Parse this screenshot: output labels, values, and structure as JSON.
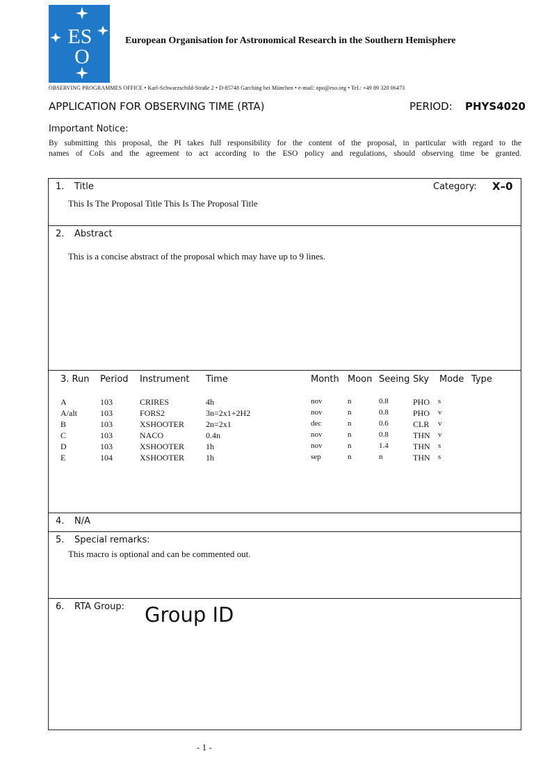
{
  "header": {
    "logo_text": "ESO",
    "organisation": "European Organisation for Astronomical Research in the Southern Hemisphere",
    "address": "OBSERVING PROGRAMMES OFFICE • Karl-Schwarzschild-Straße 2 • D-85748 Garching bei München • e-mail: opo@eso.org • Tel.: +49 89 320 06473",
    "form_title": "APPLICATION FOR OBSERVING TIME (RTA)",
    "period_label": "PERIOD:",
    "period_value": "PHYS4020"
  },
  "notice": {
    "heading": "Important Notice:",
    "line1": "By submitting this proposal, the PI takes full responsibility for the content of the proposal, in particular with regard to the",
    "line2": "names of CoIs and the agreement to act according to the ESO policy and regulations, should observing time be granted."
  },
  "sections": {
    "title": {
      "num": "1.",
      "label": "Title",
      "category_label": "Category:",
      "category_value": "X–0",
      "text": "This Is The Proposal Title This Is The Proposal Title"
    },
    "abstract": {
      "num": "2.",
      "label": "Abstract",
      "text": "This is a concise abstract of the proposal which may have up to 9 lines."
    },
    "runs": {
      "headers": [
        "3. Run",
        "Period",
        "Instrument",
        "Time",
        "Month",
        "Moon",
        "Seeing",
        "Sky",
        "Mode",
        "Type"
      ],
      "rows": [
        [
          "A",
          "103",
          "CRIRES",
          "4h",
          "nov",
          "n",
          "0.8",
          "PHO",
          "s"
        ],
        [
          "A/alt",
          "103",
          "FORS2",
          "3n=2x1+2H2",
          "nov",
          "n",
          "0.8",
          "PHO",
          "v"
        ],
        [
          "B",
          "103",
          "XSHOOTER",
          "2n=2x1",
          "dec",
          "n",
          "0.6",
          "CLR",
          "v"
        ],
        [
          "C",
          "103",
          "NACO",
          "0.4n",
          "nov",
          "n",
          "0.8",
          "THN",
          "v"
        ],
        [
          "D",
          "103",
          "XSHOOTER",
          "1h",
          "nov",
          "n",
          "1.4",
          "THN",
          "s"
        ],
        [
          "E",
          "104",
          "XSHOOTER",
          "1h",
          "sep",
          "n",
          "n",
          "THN",
          "s"
        ]
      ]
    },
    "na": {
      "num": "4.",
      "label": "N/A"
    },
    "remarks": {
      "num": "5.",
      "label": "Special remarks:",
      "text": "This macro is optional and can be commented out."
    },
    "group": {
      "num": "6.",
      "label": "RTA Group:",
      "value": "Group ID"
    }
  },
  "footer": {
    "page": "- 1 -"
  },
  "colors": {
    "logo_blue": "#1f78c8"
  }
}
